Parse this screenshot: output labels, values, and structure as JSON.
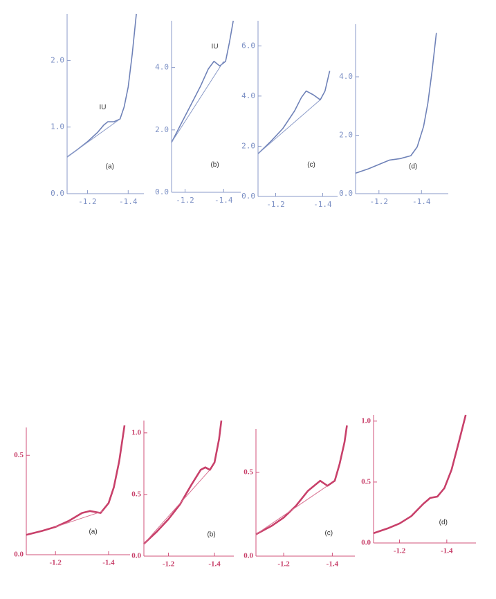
{
  "chart_data": [
    {
      "type": "line",
      "annotations": [
        "(a)",
        "IU"
      ],
      "xlim": [
        -1.1,
        -1.45
      ],
      "xticks": [
        -1.2,
        -1.4
      ],
      "ylim": [
        0,
        2.7
      ],
      "yticks": [
        {
          "value": 0,
          "label": "0.0"
        },
        {
          "value": 1,
          "label": "1.0"
        },
        {
          "value": 2,
          "label": "2.0"
        }
      ],
      "series": [
        {
          "color": "#6f82b8",
          "x": [
            -1.1,
            -1.15,
            -1.2,
            -1.25,
            -1.28,
            -1.3,
            -1.33,
            -1.36,
            -1.38,
            -1.4,
            -1.42,
            -1.44
          ],
          "values": [
            0.55,
            0.66,
            0.78,
            0.92,
            1.03,
            1.08,
            1.08,
            1.12,
            1.3,
            1.6,
            2.1,
            2.7
          ]
        },
        {
          "color": "#8a9ac8",
          "x": [
            -1.1,
            -1.36
          ],
          "values": [
            0.55,
            1.12
          ]
        }
      ]
    },
    {
      "type": "line",
      "annotations": [
        "(b)",
        "IU"
      ],
      "xlim": [
        -1.13,
        -1.46
      ],
      "xticks": [
        -1.2,
        -1.4
      ],
      "ylim": [
        0,
        5.5
      ],
      "yticks": [
        {
          "value": 0,
          "label": "0.0"
        },
        {
          "value": 2,
          "label": "2.0"
        },
        {
          "value": 4,
          "label": "4.0"
        }
      ],
      "series": [
        {
          "color": "#6f82b8",
          "x": [
            -1.13,
            -1.18,
            -1.23,
            -1.28,
            -1.32,
            -1.35,
            -1.38,
            -1.41,
            -1.43,
            -1.45
          ],
          "values": [
            1.6,
            2.2,
            2.8,
            3.4,
            3.95,
            4.2,
            4.05,
            4.2,
            4.8,
            5.5
          ]
        },
        {
          "color": "#8a9ac8",
          "x": [
            -1.13,
            -1.4
          ],
          "values": [
            1.6,
            4.2
          ]
        }
      ]
    },
    {
      "type": "line",
      "annotations": [
        "(c)"
      ],
      "xlim": [
        -1.125,
        -1.44
      ],
      "xticks": [
        -1.2,
        -1.4
      ],
      "ylim": [
        0,
        7
      ],
      "yticks": [
        {
          "value": 0,
          "label": "0.0"
        },
        {
          "value": 2,
          "label": "2.0"
        },
        {
          "value": 4,
          "label": "4.0"
        },
        {
          "value": 6,
          "label": "6.0"
        }
      ],
      "series": [
        {
          "color": "#6f82b8",
          "x": [
            -1.125,
            -1.18,
            -1.23,
            -1.28,
            -1.31,
            -1.33,
            -1.36,
            -1.39,
            -1.41,
            -1.43
          ],
          "values": [
            1.7,
            2.2,
            2.7,
            3.4,
            3.95,
            4.2,
            4.05,
            3.85,
            4.2,
            5.0
          ]
        },
        {
          "color": "#8a9ac8",
          "x": [
            -1.125,
            -1.39
          ],
          "values": [
            1.7,
            3.85
          ]
        }
      ]
    },
    {
      "type": "line",
      "annotations": [
        "(d)"
      ],
      "xlim": [
        -1.09,
        -1.5
      ],
      "xticks": [
        -1.2,
        -1.4
      ],
      "ylim": [
        0,
        5.8
      ],
      "yticks": [
        {
          "value": 0,
          "label": "0.0"
        },
        {
          "value": 2,
          "label": "2.0"
        },
        {
          "value": 4,
          "label": "4.0"
        }
      ],
      "series": [
        {
          "color": "#6f82b8",
          "x": [
            -1.09,
            -1.15,
            -1.2,
            -1.25,
            -1.3,
            -1.35,
            -1.38,
            -1.41,
            -1.43,
            -1.45,
            -1.47
          ],
          "values": [
            0.7,
            0.85,
            1.0,
            1.15,
            1.2,
            1.3,
            1.6,
            2.3,
            3.1,
            4.2,
            5.5
          ]
        }
      ]
    },
    {
      "type": "line",
      "annotations": [
        "(a)"
      ],
      "xlim": [
        -1.09,
        -1.46
      ],
      "xticks": [
        -1.2,
        -1.4
      ],
      "ylim": [
        0,
        0.64
      ],
      "yticks": [
        {
          "value": 0,
          "label": "0.0"
        },
        0.5
      ],
      "series": [
        {
          "color": "#c8406a",
          "x": [
            -1.09,
            -1.15,
            -1.2,
            -1.25,
            -1.3,
            -1.33,
            -1.37,
            -1.4,
            -1.42,
            -1.44,
            -1.46
          ],
          "values": [
            0.1,
            0.12,
            0.14,
            0.17,
            0.21,
            0.22,
            0.21,
            0.26,
            0.34,
            0.47,
            0.65
          ]
        },
        {
          "color": "#d87090",
          "x": [
            -1.2,
            -1.38
          ],
          "values": [
            0.14,
            0.22
          ]
        }
      ]
    },
    {
      "type": "line",
      "annotations": [
        "(b)"
      ],
      "xlim": [
        -1.093,
        -1.46
      ],
      "xticks": [
        -1.2,
        -1.4
      ],
      "ylim": [
        0,
        1.1
      ],
      "yticks": [
        {
          "value": 0,
          "label": "0.0"
        },
        0.5,
        {
          "value": 1,
          "label": "1.0"
        }
      ],
      "series": [
        {
          "color": "#c8406a",
          "x": [
            -1.093,
            -1.15,
            -1.2,
            -1.25,
            -1.3,
            -1.34,
            -1.36,
            -1.38,
            -1.4,
            -1.42,
            -1.43
          ],
          "values": [
            0.1,
            0.2,
            0.3,
            0.42,
            0.58,
            0.7,
            0.72,
            0.7,
            0.76,
            0.95,
            1.1
          ]
        },
        {
          "color": "#d87090",
          "x": [
            -1.093,
            -1.38
          ],
          "values": [
            0.1,
            0.7
          ]
        }
      ]
    },
    {
      "type": "line",
      "annotations": [
        "(c)"
      ],
      "xlim": [
        -1.086,
        -1.47
      ],
      "xticks": [
        -1.2,
        -1.4
      ],
      "ylim": [
        0,
        0.76
      ],
      "yticks": [
        {
          "value": 0,
          "label": "0.0"
        },
        0.5
      ],
      "series": [
        {
          "color": "#c8406a",
          "x": [
            -1.086,
            -1.15,
            -1.2,
            -1.25,
            -1.3,
            -1.35,
            -1.38,
            -1.41,
            -1.43,
            -1.45,
            -1.46
          ],
          "values": [
            0.13,
            0.18,
            0.23,
            0.3,
            0.39,
            0.45,
            0.42,
            0.45,
            0.55,
            0.68,
            0.78
          ]
        },
        {
          "color": "#d87090",
          "x": [
            -1.086,
            -1.38
          ],
          "values": [
            0.13,
            0.42
          ]
        }
      ]
    },
    {
      "type": "line",
      "annotations": [
        "(d)"
      ],
      "xlim": [
        -1.09,
        -1.5
      ],
      "xticks": [
        -1.2,
        -1.4
      ],
      "ylim": [
        0,
        1.05
      ],
      "yticks": [
        {
          "value": 0,
          "label": "0.0"
        },
        0.5,
        {
          "value": 1,
          "label": "1.0"
        }
      ],
      "series": [
        {
          "color": "#c8406a",
          "x": [
            -1.09,
            -1.15,
            -1.2,
            -1.25,
            -1.3,
            -1.33,
            -1.36,
            -1.39,
            -1.42,
            -1.45,
            -1.48
          ],
          "values": [
            0.08,
            0.12,
            0.16,
            0.22,
            0.32,
            0.37,
            0.38,
            0.45,
            0.6,
            0.82,
            1.05
          ]
        }
      ]
    }
  ]
}
